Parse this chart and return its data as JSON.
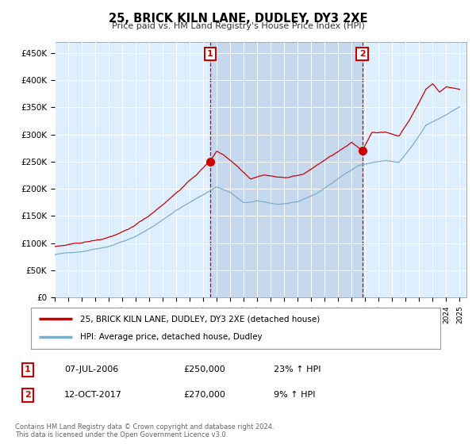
{
  "title": "25, BRICK KILN LANE, DUDLEY, DY3 2XE",
  "subtitle": "Price paid vs. HM Land Registry's House Price Index (HPI)",
  "background_color": "#ddeeff",
  "shade_color": "#c8ddf0",
  "ylim": [
    0,
    470000
  ],
  "yticks": [
    0,
    50000,
    100000,
    150000,
    200000,
    250000,
    300000,
    350000,
    400000,
    450000
  ],
  "ytick_labels": [
    "£0",
    "£50K",
    "£100K",
    "£150K",
    "£200K",
    "£250K",
    "£300K",
    "£350K",
    "£400K",
    "£450K"
  ],
  "xlim_start": 1995.0,
  "xlim_end": 2025.5,
  "legend_line1": "25, BRICK KILN LANE, DUDLEY, DY3 2XE (detached house)",
  "legend_line2": "HPI: Average price, detached house, Dudley",
  "line1_color": "#cc0000",
  "line2_color": "#7aadcc",
  "marker1_date": 2006.52,
  "marker1_price": 250000,
  "marker2_date": 2017.78,
  "marker2_price": 270000,
  "annotation1_date": "07-JUL-2006",
  "annotation1_price": "£250,000",
  "annotation1_hpi": "23% ↑ HPI",
  "annotation2_date": "12-OCT-2017",
  "annotation2_price": "£270,000",
  "annotation2_hpi": "9% ↑ HPI",
  "footer": "Contains HM Land Registry data © Crown copyright and database right 2024.\nThis data is licensed under the Open Government Licence v3.0."
}
